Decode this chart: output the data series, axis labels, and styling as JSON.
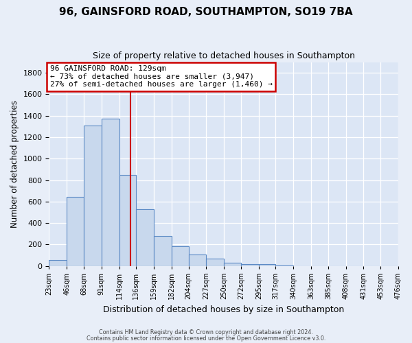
{
  "title": "96, GAINSFORD ROAD, SOUTHAMPTON, SO19 7BA",
  "subtitle": "Size of property relative to detached houses in Southampton",
  "xlabel": "Distribution of detached houses by size in Southampton",
  "ylabel": "Number of detached properties",
  "bar_values": [
    55,
    645,
    1310,
    1375,
    850,
    530,
    280,
    180,
    105,
    65,
    30,
    20,
    15,
    5,
    0,
    0,
    0,
    0,
    0,
    0
  ],
  "bin_edges": [
    23,
    46,
    68,
    91,
    114,
    136,
    159,
    182,
    204,
    227,
    250,
    272,
    295,
    317,
    340,
    363,
    385,
    408,
    431,
    453,
    476
  ],
  "tick_labels": [
    "23sqm",
    "46sqm",
    "68sqm",
    "91sqm",
    "114sqm",
    "136sqm",
    "159sqm",
    "182sqm",
    "204sqm",
    "227sqm",
    "250sqm",
    "272sqm",
    "295sqm",
    "317sqm",
    "340sqm",
    "363sqm",
    "385sqm",
    "408sqm",
    "431sqm",
    "453sqm",
    "476sqm"
  ],
  "bar_color": "#c8d8ed",
  "bar_edge_color": "#5b8ac5",
  "red_line_x": 129,
  "annotation_title": "96 GAINSFORD ROAD: 129sqm",
  "annotation_line1": "← 73% of detached houses are smaller (3,947)",
  "annotation_line2": "27% of semi-detached houses are larger (1,460) →",
  "annotation_box_color": "#ffffff",
  "annotation_box_edge": "#cc0000",
  "ylim": [
    0,
    1900
  ],
  "yticks": [
    0,
    200,
    400,
    600,
    800,
    1000,
    1200,
    1400,
    1600,
    1800
  ],
  "grid_color": "#ffffff",
  "background_color": "#dce6f5",
  "fig_background": "#e8eef8",
  "footer_line1": "Contains HM Land Registry data © Crown copyright and database right 2024.",
  "footer_line2": "Contains public sector information licensed under the Open Government Licence v3.0."
}
